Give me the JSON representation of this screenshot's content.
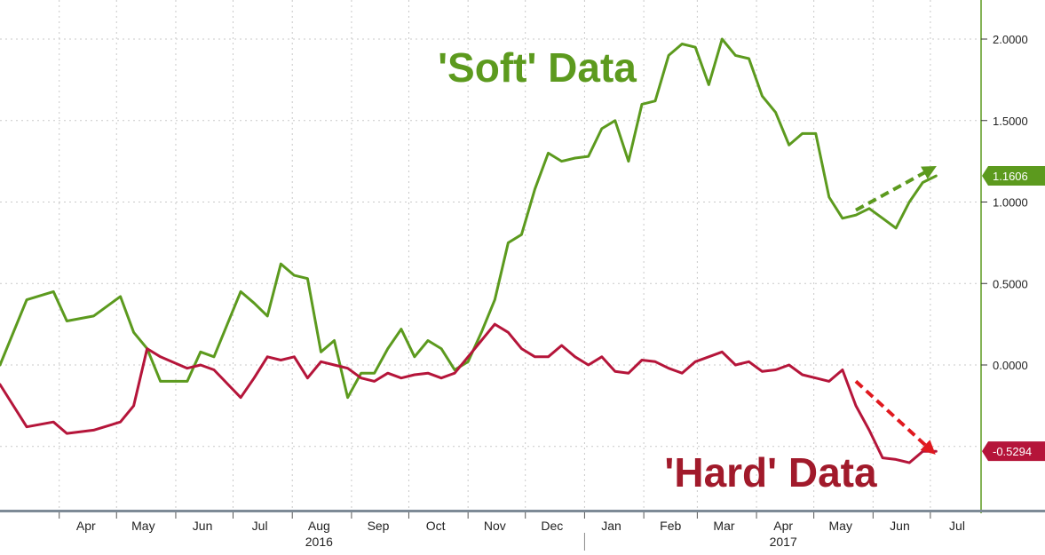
{
  "chart_data": {
    "type": "line",
    "x_dates": [
      "2016-03-01",
      "2016-03-15",
      "2016-03-29",
      "2016-04-05",
      "2016-04-19",
      "2016-05-03",
      "2016-05-10",
      "2016-05-17",
      "2016-05-24",
      "2016-06-07",
      "2016-06-14",
      "2016-06-21",
      "2016-07-05",
      "2016-07-12",
      "2016-07-19",
      "2016-07-26",
      "2016-08-02",
      "2016-08-09",
      "2016-08-16",
      "2016-08-23",
      "2016-08-30",
      "2016-09-06",
      "2016-09-13",
      "2016-09-20",
      "2016-09-27",
      "2016-10-04",
      "2016-10-11",
      "2016-10-18",
      "2016-10-25",
      "2016-11-01",
      "2016-11-08",
      "2016-11-15",
      "2016-11-22",
      "2016-11-29",
      "2016-12-06",
      "2016-12-13",
      "2016-12-20",
      "2016-12-27",
      "2017-01-03",
      "2017-01-10",
      "2017-01-17",
      "2017-01-24",
      "2017-01-31",
      "2017-02-07",
      "2017-02-14",
      "2017-02-21",
      "2017-02-28",
      "2017-03-07",
      "2017-03-14",
      "2017-03-21",
      "2017-03-28",
      "2017-04-04",
      "2017-04-11",
      "2017-04-18",
      "2017-04-25",
      "2017-05-02",
      "2017-05-09",
      "2017-05-16",
      "2017-05-23",
      "2017-05-30",
      "2017-06-06",
      "2017-06-13",
      "2017-06-20",
      "2017-06-27",
      "2017-07-04"
    ],
    "series": [
      {
        "name": "'Soft' Data",
        "color": "#5c9a1e",
        "values": [
          0.0,
          0.4,
          0.45,
          0.27,
          0.3,
          0.42,
          0.2,
          0.1,
          -0.1,
          -0.1,
          0.08,
          0.05,
          0.45,
          0.38,
          0.3,
          0.62,
          0.55,
          0.53,
          0.08,
          0.15,
          -0.2,
          -0.05,
          -0.05,
          0.1,
          0.22,
          0.05,
          0.15,
          0.1,
          -0.03,
          0.02,
          0.2,
          0.4,
          0.75,
          0.8,
          1.08,
          1.3,
          1.25,
          1.27,
          1.28,
          1.45,
          1.5,
          1.25,
          1.6,
          1.62,
          1.9,
          1.97,
          1.95,
          1.72,
          2.0,
          1.9,
          1.88,
          1.65,
          1.55,
          1.35,
          1.42,
          1.42,
          1.03,
          0.9,
          0.92,
          0.96,
          0.9,
          0.84,
          1.0,
          1.12,
          1.16
        ]
      },
      {
        "name": "'Hard' Data",
        "color": "#b5153a",
        "values": [
          -0.12,
          -0.38,
          -0.35,
          -0.42,
          -0.4,
          -0.35,
          -0.25,
          0.1,
          0.05,
          -0.02,
          0.0,
          -0.03,
          -0.2,
          -0.08,
          0.05,
          0.03,
          0.05,
          -0.08,
          0.02,
          0.0,
          -0.02,
          -0.08,
          -0.1,
          -0.05,
          -0.08,
          -0.06,
          -0.05,
          -0.08,
          -0.05,
          0.05,
          0.15,
          0.25,
          0.2,
          0.1,
          0.05,
          0.05,
          0.12,
          0.05,
          0.0,
          0.05,
          -0.04,
          -0.05,
          0.03,
          0.02,
          -0.02,
          -0.05,
          0.02,
          0.05,
          0.08,
          0.0,
          0.02,
          -0.04,
          -0.03,
          0.0,
          -0.06,
          -0.08,
          -0.1,
          -0.03,
          -0.25,
          -0.4,
          -0.57,
          -0.58,
          -0.6,
          -0.53,
          -0.53
        ]
      }
    ],
    "y_ticks": [
      "2.0000",
      "1.5000",
      "1.0000",
      "0.5000",
      "0.0000"
    ],
    "y_tick_values": [
      2.0,
      1.5,
      1.0,
      0.5,
      0.0
    ],
    "ylim": [
      -0.9,
      2.2
    ],
    "x_tick_labels": [
      "Apr",
      "May",
      "Jun",
      "Jul",
      "Aug",
      "Sep",
      "Oct",
      "Nov",
      "Dec",
      "Jan",
      "Feb",
      "Mar",
      "Apr",
      "May",
      "Jun",
      "Jul"
    ],
    "x_tick_dates": [
      "2016-04-15",
      "2016-05-15",
      "2016-06-15",
      "2016-07-15",
      "2016-08-15",
      "2016-09-15",
      "2016-10-15",
      "2016-11-15",
      "2016-12-15",
      "2017-01-15",
      "2017-02-15",
      "2017-03-15",
      "2017-04-15",
      "2017-05-15",
      "2017-06-15",
      "2017-07-15"
    ],
    "years": [
      {
        "label": "2016",
        "date": "2016-08-15"
      },
      {
        "label": "2017",
        "date": "2017-04-15"
      }
    ],
    "last_values": [
      {
        "label": "1.1606",
        "value": 1.1606,
        "color": "#5c9a1e"
      },
      {
        "label": "-0.5294",
        "value": -0.5294,
        "color": "#b5153a"
      }
    ],
    "annotations": [
      {
        "text": "'Soft' Data",
        "color": "#5c9a1e"
      },
      {
        "text": "'Hard' Data",
        "color": "#a11a2b"
      }
    ],
    "trend_arrows": [
      {
        "color": "#5c9a1e",
        "from": {
          "date": "2017-05-23",
          "value": 0.95
        },
        "to": {
          "date": "2017-07-01",
          "value": 1.2
        }
      },
      {
        "color": "#e0191f",
        "from": {
          "date": "2017-05-23",
          "value": -0.1
        },
        "to": {
          "date": "2017-07-01",
          "value": -0.52
        }
      }
    ],
    "grid": true,
    "y_axis_position": "right"
  }
}
